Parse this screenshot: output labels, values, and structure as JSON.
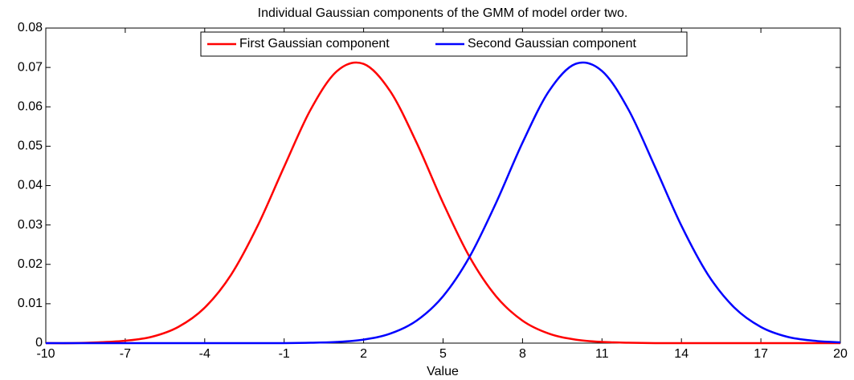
{
  "chart_data": {
    "type": "line",
    "title": "Individual Gaussian components of the GMM of model order two.",
    "xlabel": "Value",
    "x": [
      -10,
      -9,
      -8,
      -7,
      -6,
      -5,
      -4,
      -3,
      -2,
      -1,
      0,
      1,
      2,
      3,
      4,
      5,
      6,
      7,
      8,
      9,
      10,
      11,
      12,
      13,
      14,
      15,
      16,
      17,
      18,
      19,
      20
    ],
    "series": [
      {
        "name": "First Gaussian component",
        "color": "#ff0000",
        "values": [
          0,
          0,
          0.0002,
          0.0006,
          0.0016,
          0.0041,
          0.009,
          0.0174,
          0.0298,
          0.0448,
          0.0593,
          0.0691,
          0.0709,
          0.064,
          0.0509,
          0.0356,
          0.0219,
          0.0119,
          0.0057,
          0.0024,
          0.0009,
          0.0003,
          0.0001,
          0,
          0,
          0,
          0,
          0,
          0,
          0,
          0
        ]
      },
      {
        "name": "Second Gaussian component",
        "color": "#0000ff",
        "values": [
          0,
          0,
          0,
          0,
          0,
          0,
          0,
          0,
          0,
          0,
          0.0001,
          0.0003,
          0.0009,
          0.0024,
          0.0057,
          0.0119,
          0.0219,
          0.0356,
          0.0509,
          0.064,
          0.0709,
          0.0691,
          0.0593,
          0.0448,
          0.0298,
          0.0174,
          0.009,
          0.0041,
          0.0016,
          0.0006,
          0.0002
        ]
      }
    ],
    "xlim": [
      -10,
      20
    ],
    "xticks": [
      -10,
      -7,
      -4,
      -1,
      2,
      5,
      8,
      11,
      14,
      17,
      20
    ],
    "ylim": [
      0,
      0.08
    ],
    "yticks": [
      0,
      0.01,
      0.02,
      0.03,
      0.04,
      0.05,
      0.06,
      0.07,
      0.08
    ],
    "legend": "top"
  }
}
